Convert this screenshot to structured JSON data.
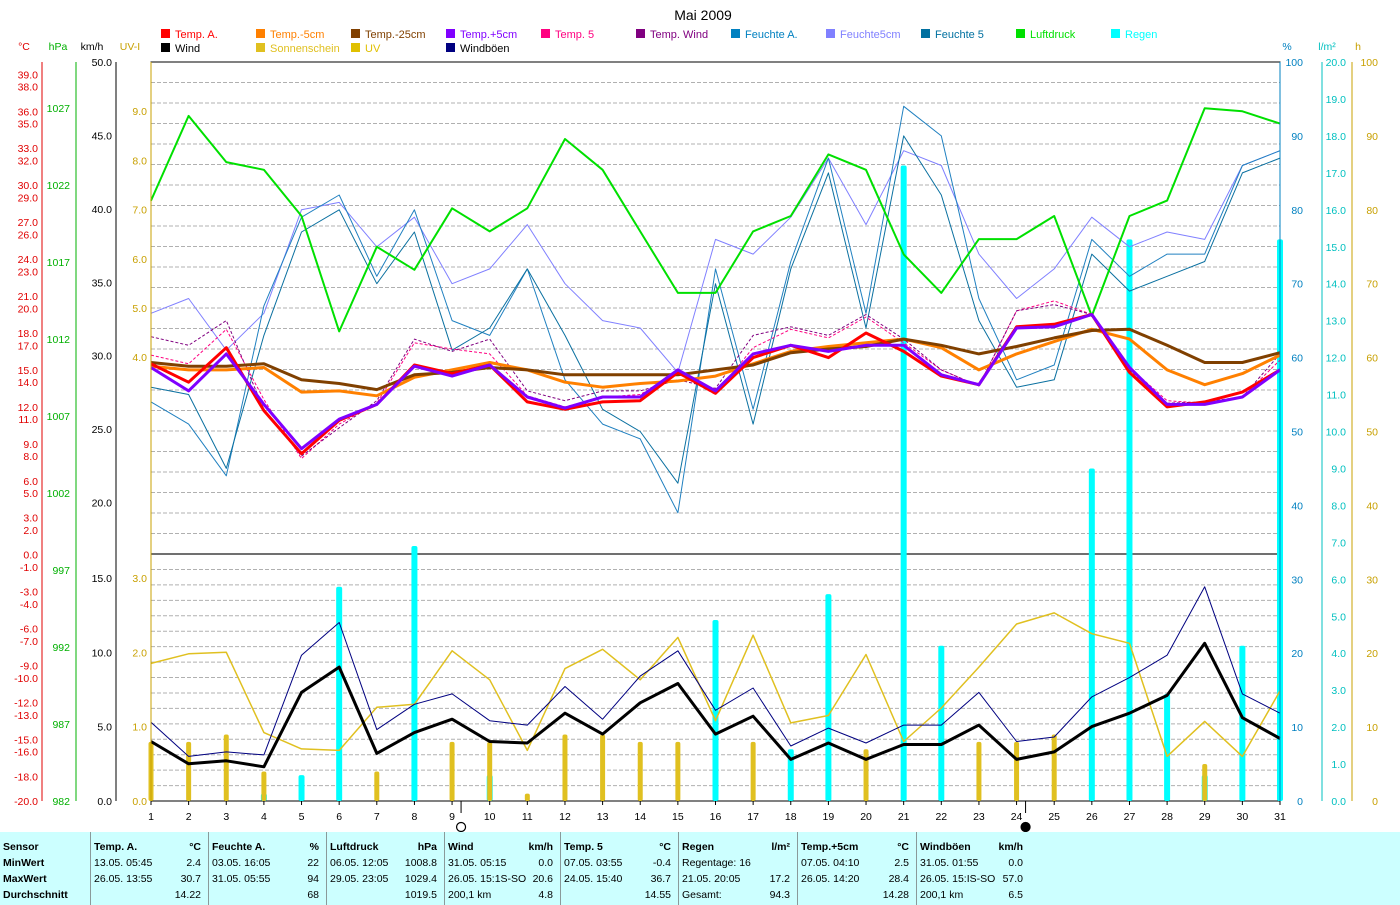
{
  "chart_data": {
    "type": "line",
    "title": "Mai 2009",
    "x_ticks": [
      "1",
      "2",
      "3",
      "4",
      "5",
      "6",
      "7",
      "8",
      "9",
      "10",
      "11",
      "12",
      "13",
      "14",
      "15",
      "16",
      "17",
      "18",
      "19",
      "20",
      "21",
      "22",
      "23",
      "24",
      "25",
      "26",
      "27",
      "28",
      "29",
      "30",
      "31"
    ],
    "axis_labels": {
      "temp": "°C",
      "pressure": "hPa",
      "wind": "km/h",
      "uv": "UV-I",
      "humidity": "%",
      "rain": "l/m²",
      "sun": "h"
    },
    "axes": {
      "temp": {
        "unit": "°C",
        "range": [
          -20,
          40
        ],
        "ticks": [
          "39.0",
          "38.0",
          "36.0",
          "35.0",
          "33.0",
          "32.0",
          "30.0",
          "29.0",
          "27.0",
          "26.0",
          "24.0",
          "23.0",
          "21.0",
          "20.0",
          "18.0",
          "17.0",
          "15.0",
          "14.0",
          "12.0",
          "11.0",
          "9.0",
          "8.0",
          "6.0",
          "5.0",
          "3.0",
          "2.0",
          "0.0",
          "-1.0",
          "-3.0",
          "-4.0",
          "-6.0",
          "-7.0",
          "-9.0",
          "-10.0",
          "-12.0",
          "-13.0",
          "-15.0",
          "-16.0",
          "-18.0",
          "-20.0"
        ]
      },
      "pressure": {
        "unit": "hPa",
        "range": [
          982,
          1030
        ],
        "ticks": [
          "1027",
          "1022",
          "1017",
          "1012",
          "1007",
          "1002",
          "997",
          "992",
          "987",
          "982"
        ]
      },
      "wind_upper": {
        "unit": "km/h",
        "range": [
          16.5,
          50
        ],
        "ticks": [
          "50.0",
          "45.0",
          "40.0",
          "35.0",
          "30.0",
          "25.0",
          "20.0"
        ]
      },
      "uv_upper": {
        "unit": "UV-I",
        "range": [
          0,
          10
        ],
        "ticks": [
          "9.0",
          "8.0",
          "7.0",
          "6.0",
          "5.0",
          "4.0"
        ]
      },
      "wind_lower": {
        "unit": "km/h",
        "range": [
          0,
          16.5
        ],
        "ticks": [
          "15.0",
          "10.0",
          "5.0",
          "0.0"
        ]
      },
      "uv_lower": {
        "unit": "UV-I",
        "range": [
          0,
          3.3
        ],
        "ticks": [
          "3.0",
          "2.0",
          "1.0",
          "0.0"
        ]
      },
      "humidity": {
        "unit": "%",
        "range": [
          0,
          100
        ],
        "ticks": [
          "100",
          "90",
          "80",
          "70",
          "60",
          "50",
          "40",
          "30",
          "20",
          "10",
          "0"
        ]
      },
      "rain": {
        "unit": "l/m²",
        "range": [
          0,
          20
        ],
        "ticks": [
          "20.0",
          "19.0",
          "18.0",
          "17.0",
          "16.0",
          "15.0",
          "14.0",
          "13.0",
          "12.0",
          "11.0",
          "10.0",
          "9.0",
          "8.0",
          "7.0",
          "6.0",
          "5.0",
          "4.0",
          "3.0",
          "2.0",
          "1.0",
          "0.0"
        ]
      },
      "sun": {
        "unit": "h",
        "range": [
          0,
          100
        ],
        "ticks": [
          "100",
          "90",
          "80",
          "70",
          "60",
          "50",
          "40",
          "30",
          "20",
          "10",
          "0"
        ]
      }
    },
    "legend": [
      {
        "name": "Temp. A.",
        "color": "#ff0000"
      },
      {
        "name": "Temp.-5cm",
        "color": "#ff8000"
      },
      {
        "name": "Temp.-25cm",
        "color": "#804000"
      },
      {
        "name": "Temp.+5cm",
        "color": "#8000ff"
      },
      {
        "name": "Temp. 5",
        "color": "#ff0080"
      },
      {
        "name": "Temp. Wind",
        "color": "#800080"
      },
      {
        "name": "Feuchte A.",
        "color": "#0080c0"
      },
      {
        "name": "Feuchte5cm",
        "color": "#8080ff"
      },
      {
        "name": "Feuchte 5",
        "color": "#0070a0"
      },
      {
        "name": "Luftdruck",
        "color": "#00e000"
      },
      {
        "name": "Regen",
        "color": "#00ffff"
      },
      {
        "name": "Wind",
        "color": "#000000"
      },
      {
        "name": "Sonnenschein",
        "color": "#e0c020"
      },
      {
        "name": "UV",
        "color": "#e0c000"
      },
      {
        "name": "Windböen",
        "color": "#000080"
      }
    ],
    "series": [
      {
        "name": "Temp. A.",
        "axis": "temp",
        "color": "#ff0000",
        "width": 3,
        "values": [
          15.5,
          14.0,
          16.8,
          11.7,
          8.2,
          10.9,
          12.2,
          15.4,
          14.7,
          15.4,
          12.4,
          11.8,
          12.4,
          12.5,
          14.8,
          13.1,
          16.0,
          17.0,
          16.0,
          18.0,
          16.5,
          14.5,
          13.8,
          18.5,
          18.7,
          19.5,
          14.8,
          12.0,
          12.4,
          13.2,
          15.0
        ]
      },
      {
        "name": "Temp.-5cm",
        "axis": "temp",
        "color": "#ff8000",
        "width": 3,
        "values": [
          15.3,
          15.0,
          15.0,
          15.2,
          13.2,
          13.3,
          12.9,
          14.4,
          15.0,
          15.6,
          15.0,
          14.0,
          13.6,
          13.9,
          14.1,
          14.5,
          15.5,
          16.5,
          16.9,
          17.2,
          17.5,
          16.8,
          15.0,
          16.3,
          17.3,
          18.3,
          17.5,
          15.0,
          13.8,
          14.7,
          16.2
        ]
      },
      {
        "name": "Temp.-25cm",
        "axis": "temp",
        "color": "#804000",
        "width": 3,
        "values": [
          15.6,
          15.3,
          15.3,
          15.5,
          14.2,
          13.9,
          13.4,
          14.6,
          14.8,
          15.2,
          15.0,
          14.6,
          14.6,
          14.6,
          14.6,
          15.0,
          15.4,
          16.4,
          16.7,
          16.9,
          17.5,
          17.0,
          16.3,
          16.9,
          17.6,
          18.2,
          18.3,
          17.0,
          15.6,
          15.6,
          16.4
        ]
      },
      {
        "name": "Temp.+5cm",
        "axis": "temp",
        "color": "#8000ff",
        "width": 3,
        "values": [
          15.2,
          13.3,
          16.3,
          12.2,
          8.6,
          11.0,
          12.2,
          15.3,
          14.5,
          15.4,
          12.8,
          11.9,
          12.8,
          12.8,
          15.0,
          13.3,
          16.3,
          17.0,
          16.5,
          17.0,
          17.0,
          14.6,
          13.8,
          18.4,
          18.5,
          19.5,
          15.2,
          12.2,
          12.2,
          12.8,
          15.0
        ]
      },
      {
        "name": "Temp. 5",
        "axis": "temp",
        "color": "#ff0080",
        "width": 1,
        "dash": "3,2",
        "values": [
          16.2,
          15.5,
          18.3,
          12.6,
          7.8,
          10.6,
          12.3,
          17.2,
          16.7,
          16.3,
          12.9,
          12.0,
          12.8,
          13.0,
          14.7,
          13.0,
          16.8,
          18.3,
          17.6,
          19.3,
          17.2,
          15.0,
          13.7,
          19.8,
          20.6,
          19.5,
          15.2,
          12.5,
          12.3,
          12.8,
          15.8
        ]
      },
      {
        "name": "Temp. Wind",
        "axis": "temp",
        "color": "#800080",
        "width": 1,
        "dash": "3,2",
        "values": [
          17.7,
          17.0,
          19.0,
          11.8,
          8.0,
          10.3,
          12.5,
          17.5,
          16.5,
          17.5,
          13.3,
          12.5,
          13.3,
          13.3,
          14.2,
          13.5,
          17.8,
          18.5,
          17.8,
          19.5,
          17.5,
          15.0,
          13.7,
          19.8,
          20.3,
          19.5,
          15.0,
          12.3,
          12.4,
          12.8,
          16.3
        ]
      },
      {
        "name": "Feuchte A.",
        "axis": "humidity",
        "color": "#2080c0",
        "width": 1,
        "values": [
          54,
          51,
          44,
          67,
          79,
          82,
          71,
          80,
          65,
          63,
          72,
          57,
          51,
          49,
          39,
          72,
          53,
          73,
          87,
          66,
          94,
          90,
          68,
          57,
          59,
          76,
          71,
          74,
          74,
          86,
          88
        ]
      },
      {
        "name": "Feuchte5cm",
        "axis": "humidity",
        "color": "#8080ff",
        "width": 1,
        "values": [
          66,
          68,
          61,
          66,
          80,
          81,
          75,
          79,
          70,
          72,
          78,
          70,
          65,
          64,
          58,
          76,
          74,
          79,
          87,
          78,
          88,
          86,
          74,
          68,
          72,
          79,
          75,
          77,
          76,
          86,
          88
        ]
      },
      {
        "name": "Feuchte 5",
        "axis": "humidity",
        "color": "#0a70a0",
        "width": 1,
        "values": [
          56,
          55,
          45,
          63,
          77,
          80,
          70,
          77,
          61,
          64,
          72,
          63,
          53,
          50,
          43,
          70,
          51,
          72,
          85,
          64,
          90,
          82,
          65,
          56,
          57,
          74,
          69,
          71,
          73,
          85,
          87
        ]
      },
      {
        "name": "Luftdruck",
        "axis": "pressure",
        "color": "#00e000",
        "width": 2,
        "values": [
          1021.0,
          1026.5,
          1023.5,
          1023.0,
          1020.0,
          1012.5,
          1018.0,
          1016.5,
          1020.5,
          1019.0,
          1020.5,
          1025.0,
          1023.0,
          1019.0,
          1015.0,
          1015.0,
          1019.0,
          1020.0,
          1024.0,
          1023.0,
          1017.5,
          1015.0,
          1018.5,
          1018.5,
          1020.0,
          1013.5,
          1020.0,
          1021.0,
          1027.0,
          1026.8,
          1026.0
        ]
      },
      {
        "name": "Wind",
        "axis": "wind_lower",
        "color": "#000000",
        "width": 3,
        "values": [
          4.0,
          2.5,
          2.7,
          2.3,
          7.3,
          9.0,
          3.2,
          4.6,
          5.5,
          4.0,
          3.9,
          5.9,
          4.5,
          6.6,
          7.9,
          4.5,
          5.7,
          2.8,
          3.9,
          2.8,
          3.8,
          3.8,
          5.1,
          2.8,
          3.3,
          5.0,
          5.9,
          7.1,
          10.6,
          5.6,
          4.2
        ]
      },
      {
        "name": "Windböen",
        "axis": "wind_lower",
        "color": "#000080",
        "width": 1,
        "values": [
          5.3,
          3.0,
          3.3,
          3.1,
          9.8,
          12.0,
          4.8,
          6.5,
          7.2,
          5.4,
          5.1,
          7.7,
          5.5,
          8.4,
          10.1,
          6.1,
          7.6,
          3.7,
          4.9,
          3.9,
          5.1,
          5.1,
          7.3,
          4.0,
          4.3,
          7.0,
          8.3,
          9.8,
          14.4,
          7.2,
          5.9
        ]
      },
      {
        "name": "UV",
        "axis": "uv_lower",
        "color": "#e0c020",
        "width": 1.5,
        "values": [
          1.85,
          1.98,
          2.0,
          0.92,
          0.7,
          0.68,
          1.26,
          1.3,
          2.02,
          1.63,
          0.68,
          1.78,
          2.04,
          1.63,
          2.2,
          1.08,
          2.23,
          1.05,
          1.15,
          1.97,
          0.8,
          1.25,
          1.8,
          2.38,
          2.53,
          2.25,
          2.12,
          0.6,
          1.07,
          0.6,
          1.48
        ]
      }
    ],
    "bars": [
      {
        "name": "Regen",
        "axis": "rain",
        "color": "#00ffff",
        "values": [
          0,
          0,
          0,
          0.2,
          0.7,
          5.8,
          0,
          6.9,
          0,
          0.7,
          0,
          0,
          0,
          0,
          0,
          4.9,
          0,
          1.4,
          5.6,
          0,
          17.2,
          4.2,
          0,
          0,
          0,
          9.0,
          15.2,
          2.9,
          0.7,
          4.2,
          15.2
        ]
      },
      {
        "name": "Sonnenschein",
        "axis": "sun",
        "color": "#e0c020",
        "values": [
          8,
          8,
          9,
          4,
          0,
          0,
          4,
          0,
          8,
          8,
          1,
          9,
          9,
          8,
          8,
          0,
          8,
          0,
          0,
          7,
          0,
          0,
          8,
          8,
          9,
          0,
          0,
          0,
          5,
          0,
          0
        ]
      }
    ],
    "moon_markers": [
      {
        "day": "9",
        "phase": "full"
      },
      {
        "day": "24",
        "phase": "new"
      }
    ],
    "grid": true
  },
  "stats": {
    "col1": {
      "title": "Sensor",
      "rows": [
        "MinWert",
        "MaxWert",
        "Durchschnitt"
      ]
    },
    "col2": {
      "title": "Temp. A.",
      "unit": "°C",
      "rows": [
        [
          "13.05.  05:45",
          "2.4"
        ],
        [
          "26.05.  13:55",
          "30.7"
        ],
        [
          "",
          "14.22"
        ]
      ]
    },
    "col3": {
      "title": "Feuchte A.",
      "unit": "%",
      "rows": [
        [
          "03.05.  16:05",
          "22"
        ],
        [
          "31.05.  05:55",
          "94"
        ],
        [
          "",
          "68"
        ]
      ]
    },
    "col4": {
      "title": "Luftdruck",
      "unit": "hPa",
      "rows": [
        [
          "06.05.  12:05",
          "1008.8"
        ],
        [
          "29.05.  23:05",
          "1029.4"
        ],
        [
          "",
          "1019.5"
        ]
      ]
    },
    "col5": {
      "title": "Wind",
      "unit": "km/h",
      "rows": [
        [
          "31.05.  05:15",
          "0.0"
        ],
        [
          "26.05.  15:1S-SO",
          "20.6"
        ],
        [
          "200,1 km",
          "4.8"
        ]
      ]
    },
    "col6": {
      "title": "Temp. 5",
      "unit": "°C",
      "rows": [
        [
          "07.05.  03:55",
          "-0.4"
        ],
        [
          "24.05.  15:40",
          "36.7"
        ],
        [
          "",
          "14.55"
        ]
      ]
    },
    "col7": {
      "title": "Regen",
      "unit": "l/m²",
      "rows": [
        [
          "Regentage: 16",
          ""
        ],
        [
          "21.05.  20:05",
          "17.2"
        ],
        [
          "Gesamt:",
          "94.3"
        ]
      ]
    },
    "col8": {
      "title": "Temp.+5cm",
      "unit": "°C",
      "rows": [
        [
          "07.05.  04:10",
          "2.5"
        ],
        [
          "26.05.  14:20",
          "28.4"
        ],
        [
          "",
          "14.28"
        ]
      ]
    },
    "col9": {
      "title": "Windböen",
      "unit": "km/h",
      "rows": [
        [
          "31.05.  01:55",
          "0.0"
        ],
        [
          "26.05.  15:IS-SO",
          "57.0"
        ],
        [
          "200,1 km",
          "6.5"
        ]
      ]
    }
  }
}
